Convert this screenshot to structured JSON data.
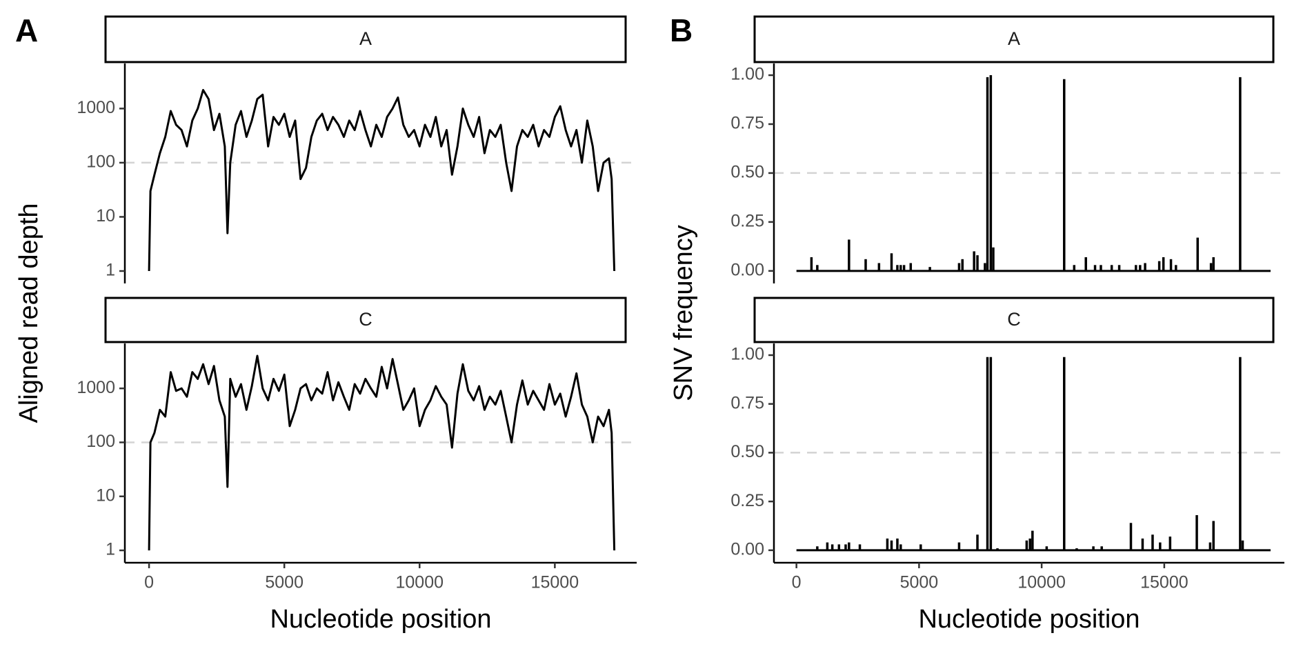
{
  "chart_data": [
    {
      "type": "line",
      "panel_label": "A",
      "facet": "A",
      "ylabel": "Aligned read depth",
      "color": "#000000",
      "log_y": true,
      "hline": 100,
      "xlim": [
        -895,
        18025
      ],
      "ylim": [
        0.59,
        6800
      ],
      "yticks": [
        1,
        10,
        100,
        1000
      ],
      "x": [
        0,
        50,
        200,
        400,
        600,
        800,
        1000,
        1200,
        1400,
        1600,
        1800,
        2000,
        2200,
        2400,
        2600,
        2800,
        2900,
        3000,
        3200,
        3400,
        3600,
        3800,
        4000,
        4200,
        4400,
        4600,
        4800,
        5000,
        5200,
        5400,
        5600,
        5800,
        6000,
        6200,
        6400,
        6600,
        6800,
        7000,
        7200,
        7400,
        7600,
        7800,
        8000,
        8200,
        8400,
        8600,
        8800,
        9000,
        9200,
        9400,
        9600,
        9800,
        10000,
        10200,
        10400,
        10600,
        10800,
        11000,
        11200,
        11400,
        11600,
        11800,
        12000,
        12200,
        12400,
        12600,
        12800,
        13000,
        13200,
        13400,
        13600,
        13800,
        14000,
        14200,
        14400,
        14600,
        14800,
        15000,
        15200,
        15400,
        15600,
        15800,
        16000,
        16200,
        16400,
        16600,
        16800,
        17000,
        17100,
        17200
      ],
      "values": [
        1,
        30,
        60,
        150,
        300,
        900,
        500,
        400,
        200,
        600,
        1000,
        2200,
        1500,
        400,
        800,
        200,
        5,
        100,
        500,
        900,
        300,
        600,
        1500,
        1800,
        200,
        700,
        500,
        800,
        300,
        600,
        50,
        80,
        300,
        600,
        800,
        400,
        700,
        500,
        300,
        600,
        400,
        900,
        400,
        200,
        500,
        300,
        700,
        1000,
        1600,
        500,
        300,
        400,
        200,
        500,
        300,
        700,
        200,
        400,
        60,
        200,
        1000,
        500,
        300,
        700,
        150,
        400,
        300,
        500,
        100,
        30,
        200,
        400,
        300,
        500,
        200,
        400,
        300,
        700,
        1100,
        400,
        200,
        400,
        100,
        600,
        200,
        30,
        100,
        120,
        50,
        1
      ]
    },
    {
      "type": "line",
      "facet": "C",
      "xlabel": "Nucleotide position",
      "color": "#000000",
      "log_y": true,
      "hline": 100,
      "xlim": [
        -895,
        18025
      ],
      "ylim": [
        0.59,
        6800
      ],
      "yticks": [
        1,
        10,
        100,
        1000
      ],
      "xticks": [
        0,
        5000,
        10000,
        15000
      ],
      "x": [
        0,
        50,
        200,
        400,
        600,
        800,
        1000,
        1200,
        1400,
        1600,
        1800,
        2000,
        2200,
        2400,
        2600,
        2800,
        2900,
        3000,
        3200,
        3400,
        3600,
        3800,
        4000,
        4200,
        4400,
        4600,
        4800,
        5000,
        5200,
        5400,
        5600,
        5800,
        6000,
        6200,
        6400,
        6600,
        6800,
        7000,
        7200,
        7400,
        7600,
        7800,
        8000,
        8200,
        8400,
        8600,
        8800,
        9000,
        9200,
        9400,
        9600,
        9800,
        10000,
        10200,
        10400,
        10600,
        10800,
        11000,
        11200,
        11400,
        11600,
        11800,
        12000,
        12200,
        12400,
        12600,
        12800,
        13000,
        13200,
        13400,
        13600,
        13800,
        14000,
        14200,
        14400,
        14600,
        14800,
        15000,
        15200,
        15400,
        15600,
        15800,
        16000,
        16200,
        16400,
        16600,
        16800,
        17000,
        17100,
        17200
      ],
      "values": [
        1,
        100,
        150,
        400,
        300,
        2000,
        900,
        1000,
        700,
        2000,
        1500,
        2800,
        1200,
        2600,
        600,
        300,
        15,
        1500,
        700,
        1200,
        400,
        1100,
        4000,
        1000,
        600,
        1500,
        900,
        1800,
        200,
        400,
        1000,
        1200,
        600,
        1000,
        800,
        2000,
        600,
        1300,
        700,
        400,
        1200,
        800,
        1500,
        1000,
        700,
        2500,
        1000,
        3500,
        1200,
        400,
        600,
        1000,
        200,
        400,
        600,
        1100,
        700,
        500,
        80,
        800,
        2800,
        900,
        600,
        1100,
        400,
        700,
        500,
        900,
        300,
        100,
        500,
        1400,
        500,
        900,
        600,
        400,
        1200,
        500,
        800,
        300,
        700,
        1900,
        500,
        300,
        100,
        300,
        200,
        400,
        150,
        1
      ]
    },
    {
      "type": "spike",
      "panel_label": "B",
      "facet": "A",
      "ylabel": "SNV frequency",
      "color": "#000000",
      "hline": 0.5,
      "xlim": [
        -918,
        19898
      ],
      "ylim": [
        -0.064,
        1.06
      ],
      "yticks": [
        {
          "value": 0,
          "label": "0.00"
        },
        {
          "value": 0.25,
          "label": "0.25"
        },
        {
          "value": 0.5,
          "label": "0.50"
        },
        {
          "value": 0.75,
          "label": "0.75"
        },
        {
          "value": 1,
          "label": "1.00"
        }
      ],
      "x": [
        612,
        850,
        2143,
        2823,
        3367,
        3878,
        4116,
        4252,
        4388,
        4660,
        5442,
        6633,
        6769,
        7245,
        7381,
        7687,
        7789,
        7925,
        8027,
        10918,
        11327,
        11803,
        12177,
        12415,
        12857,
        13163,
        13844,
        14014,
        14218,
        14796,
        14966,
        15272,
        15476,
        16361,
        16905,
        17007,
        18095
      ],
      "values": [
        0.07,
        0.03,
        0.16,
        0.06,
        0.04,
        0.09,
        0.03,
        0.03,
        0.03,
        0.04,
        0.02,
        0.04,
        0.06,
        0.1,
        0.08,
        0.04,
        0.99,
        1.0,
        0.12,
        0.98,
        0.03,
        0.07,
        0.03,
        0.03,
        0.03,
        0.03,
        0.03,
        0.03,
        0.04,
        0.05,
        0.07,
        0.06,
        0.03,
        0.17,
        0.04,
        0.07,
        0.99
      ]
    },
    {
      "type": "spike",
      "facet": "C",
      "xlabel": "Nucleotide position",
      "color": "#000000",
      "hline": 0.5,
      "xlim": [
        -918,
        19898
      ],
      "ylim": [
        -0.064,
        1.06
      ],
      "xticks": [
        0,
        5000,
        10000,
        15000
      ],
      "yticks": [
        {
          "value": 0,
          "label": "0.00"
        },
        {
          "value": 0.25,
          "label": "0.25"
        },
        {
          "value": 0.5,
          "label": "0.50"
        },
        {
          "value": 0.75,
          "label": "0.75"
        },
        {
          "value": 1,
          "label": "1.00"
        }
      ],
      "x": [
        850,
        1259,
        1463,
        1735,
        2007,
        2143,
        2585,
        3707,
        3878,
        4116,
        4252,
        5068,
        6633,
        7381,
        7789,
        7925,
        8197,
        9388,
        9524,
        9626,
        10204,
        10918,
        11429,
        12109,
        12449,
        13639,
        14116,
        14524,
        14830,
        15238,
        16327,
        16871,
        17007,
        18095,
        18197
      ],
      "values": [
        0.02,
        0.04,
        0.03,
        0.03,
        0.03,
        0.04,
        0.03,
        0.06,
        0.05,
        0.06,
        0.03,
        0.03,
        0.04,
        0.08,
        0.99,
        0.99,
        0.01,
        0.05,
        0.06,
        0.1,
        0.02,
        0.99,
        0.01,
        0.02,
        0.02,
        0.14,
        0.06,
        0.08,
        0.04,
        0.07,
        0.18,
        0.04,
        0.15,
        0.99,
        0.05
      ]
    }
  ]
}
